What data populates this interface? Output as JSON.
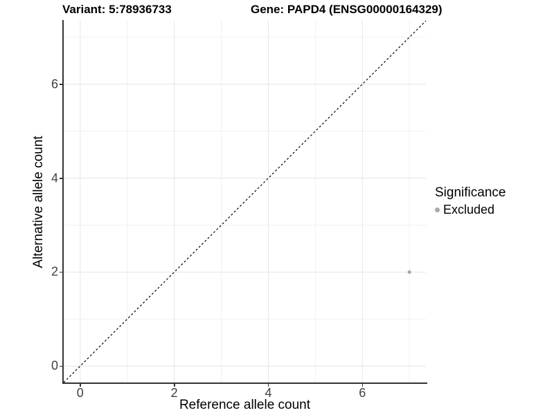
{
  "titles": {
    "variant": "Variant: 5:78936733",
    "gene": "Gene: PAPD4 (ENSG00000164329)"
  },
  "axes": {
    "x_label": "Reference allele count",
    "y_label": "Alternative allele count"
  },
  "legend": {
    "title": "Significance",
    "position": "right",
    "items": [
      {
        "label": "Excluded",
        "color": "#a9a9a9"
      }
    ]
  },
  "colors": {
    "axis_line": "#333333",
    "tick_label": "#404040",
    "grid_major": "#e4e4e4",
    "grid_minor": "#f0f0f0",
    "reference_line": "#000000",
    "point": "#a9a9a9",
    "background": "#ffffff"
  },
  "chart_data": {
    "type": "scatter",
    "title": "Variant: 5:78936733   Gene: PAPD4 (ENSG00000164329)",
    "xlabel": "Reference allele count",
    "ylabel": "Alternative allele count",
    "xlim": [
      -0.35,
      7.35
    ],
    "ylim": [
      -0.35,
      7.35
    ],
    "xticks": [
      0,
      2,
      4,
      6
    ],
    "yticks": [
      0,
      2,
      4,
      6
    ],
    "minor_gridlines_x": [
      1,
      3,
      5,
      7
    ],
    "minor_gridlines_y": [
      1,
      3,
      5,
      7
    ],
    "grid": true,
    "legend_position": "right",
    "reference_line": {
      "type": "identity",
      "slope": 1,
      "intercept": 0,
      "style": "dashed"
    },
    "series": [
      {
        "name": "Excluded",
        "color": "#a9a9a9",
        "points": [
          {
            "x": 7,
            "y": 2
          }
        ]
      }
    ]
  }
}
